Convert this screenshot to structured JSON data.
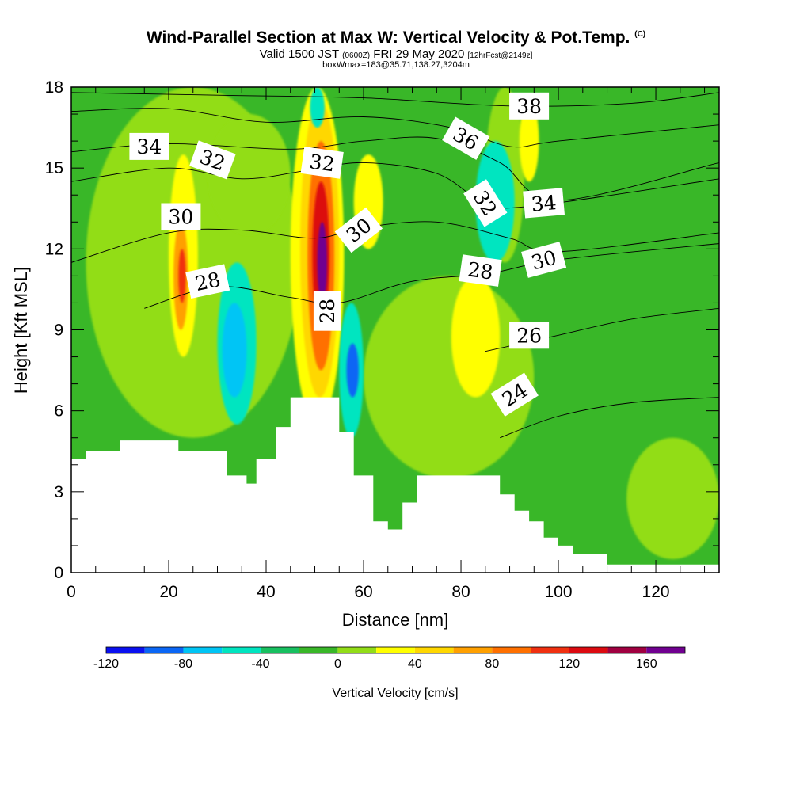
{
  "header": {
    "title": "Wind-Parallel Section at Max W: Vertical Velocity & Pot.Temp.",
    "copyright": "(C)",
    "valid_prefix": "Valid 1500 JST",
    "valid_utc": "(0600Z)",
    "valid_date": "FRI 29 May 2020",
    "forecast": "[12hrFcst@2149z]",
    "box_info": "boxWmax=183@35.71,138.27,3204m"
  },
  "chart_data": {
    "type": "heatmap",
    "xlabel": "Distance [nm]",
    "ylabel": "Height [Kft MSL]",
    "xlim": [
      0,
      133
    ],
    "ylim": [
      0,
      18
    ],
    "x_ticks": [
      0,
      20,
      40,
      60,
      80,
      100,
      120
    ],
    "y_ticks": [
      0,
      3,
      6,
      9,
      12,
      15,
      18
    ],
    "colorbar": {
      "title": "Vertical Velocity [cm/s]",
      "labels": [
        "-120",
        "-80",
        "-40",
        "0",
        "40",
        "80",
        "120",
        "160"
      ],
      "label_values": [
        -120,
        -80,
        -40,
        0,
        40,
        80,
        120,
        160
      ],
      "range": [
        -120,
        180
      ],
      "bins": [
        {
          "from": -120,
          "to": -100,
          "color": "#0a10f0"
        },
        {
          "from": -100,
          "to": -80,
          "color": "#0a66f5"
        },
        {
          "from": -80,
          "to": -60,
          "color": "#00c5f5"
        },
        {
          "from": -60,
          "to": -40,
          "color": "#00e5c0"
        },
        {
          "from": -40,
          "to": -20,
          "color": "#18c060"
        },
        {
          "from": -20,
          "to": 0,
          "color": "#39b728"
        },
        {
          "from": 0,
          "to": 20,
          "color": "#92dd18"
        },
        {
          "from": 20,
          "to": 40,
          "color": "#ffff00"
        },
        {
          "from": 40,
          "to": 60,
          "color": "#ffd700"
        },
        {
          "from": 60,
          "to": 80,
          "color": "#ffa000"
        },
        {
          "from": 80,
          "to": 100,
          "color": "#ff7000"
        },
        {
          "from": 100,
          "to": 120,
          "color": "#f03010"
        },
        {
          "from": 120,
          "to": 140,
          "color": "#dc0a10"
        },
        {
          "from": 140,
          "to": 160,
          "color": "#a00040"
        },
        {
          "from": 160,
          "to": 180,
          "color": "#700090"
        }
      ]
    },
    "background_velocity": -10,
    "velocity_features": [
      {
        "x": [
          3,
          47
        ],
        "y": [
          5,
          18
        ],
        "value": 5
      },
      {
        "x": [
          60,
          95
        ],
        "y": [
          3.5,
          11
        ],
        "value": 5
      },
      {
        "x": [
          114,
          133
        ],
        "y": [
          0.5,
          5
        ],
        "value": 5
      },
      {
        "x": [
          85,
          93
        ],
        "y": [
          11.5,
          18
        ],
        "value": 5
      },
      {
        "x": [
          28,
          45
        ],
        "y": [
          12.5,
          17
        ],
        "value": 5
      },
      {
        "x": [
          78,
          88
        ],
        "y": [
          6.5,
          11
        ],
        "value": 30
      },
      {
        "x": [
          92,
          96
        ],
        "y": [
          14.5,
          17.5
        ],
        "value": 30
      },
      {
        "x": [
          20,
          26
        ],
        "y": [
          8,
          15.5
        ],
        "value": 30
      },
      {
        "x": [
          21,
          24
        ],
        "y": [
          9,
          13
        ],
        "value": 70
      },
      {
        "x": [
          22,
          23.5
        ],
        "y": [
          10,
          12
        ],
        "value": 110
      },
      {
        "x": [
          45,
          56
        ],
        "y": [
          5.5,
          18
        ],
        "value": 30
      },
      {
        "x": [
          47,
          55
        ],
        "y": [
          6.5,
          17.5
        ],
        "value": 50
      },
      {
        "x": [
          48.5,
          54
        ],
        "y": [
          7.5,
          16
        ],
        "value": 90
      },
      {
        "x": [
          49.5,
          53
        ],
        "y": [
          9,
          14.5
        ],
        "value": 130
      },
      {
        "x": [
          50.5,
          52.5
        ],
        "y": [
          10,
          13
        ],
        "value": 170
      },
      {
        "x": [
          58,
          64
        ],
        "y": [
          12,
          15.5
        ],
        "value": 30
      },
      {
        "x": [
          30,
          38
        ],
        "y": [
          5.5,
          11.5
        ],
        "value": -50
      },
      {
        "x": [
          31,
          36
        ],
        "y": [
          6.5,
          10
        ],
        "value": -70
      },
      {
        "x": [
          55,
          60
        ],
        "y": [
          5,
          10
        ],
        "value": -50
      },
      {
        "x": [
          56.5,
          59
        ],
        "y": [
          6.5,
          8.5
        ],
        "value": -90
      },
      {
        "x": [
          83,
          91
        ],
        "y": [
          11.5,
          16
        ],
        "value": -50
      },
      {
        "x": [
          49,
          52
        ],
        "y": [
          16.5,
          18
        ],
        "value": -50
      }
    ],
    "terrain_kft": [
      [
        0,
        4.2
      ],
      [
        3,
        4.2
      ],
      [
        3,
        4.5
      ],
      [
        10,
        4.5
      ],
      [
        10,
        4.9
      ],
      [
        22,
        4.9
      ],
      [
        22,
        4.5
      ],
      [
        32,
        4.5
      ],
      [
        32,
        3.6
      ],
      [
        36,
        3.6
      ],
      [
        36,
        3.3
      ],
      [
        38,
        3.3
      ],
      [
        38,
        4.2
      ],
      [
        42,
        4.2
      ],
      [
        42,
        5.4
      ],
      [
        45,
        5.4
      ],
      [
        45,
        6.5
      ],
      [
        55,
        6.5
      ],
      [
        55,
        5.2
      ],
      [
        58,
        5.2
      ],
      [
        58,
        3.6
      ],
      [
        62,
        3.6
      ],
      [
        62,
        1.9
      ],
      [
        65,
        1.9
      ],
      [
        65,
        1.6
      ],
      [
        68,
        1.6
      ],
      [
        68,
        2.6
      ],
      [
        71,
        2.6
      ],
      [
        71,
        3.6
      ],
      [
        88,
        3.6
      ],
      [
        88,
        2.9
      ],
      [
        91,
        2.9
      ],
      [
        91,
        2.3
      ],
      [
        94,
        2.3
      ],
      [
        94,
        1.9
      ],
      [
        97,
        1.9
      ],
      [
        97,
        1.3
      ],
      [
        100,
        1.3
      ],
      [
        100,
        1.0
      ],
      [
        103,
        1.0
      ],
      [
        103,
        0.7
      ],
      [
        110,
        0.7
      ],
      [
        110,
        0.3
      ],
      [
        133,
        0.3
      ]
    ],
    "theta_contours": [
      {
        "value": 24,
        "points": [
          [
            88,
            5
          ],
          [
            100,
            5.8
          ],
          [
            115,
            6.3
          ],
          [
            133,
            6.5
          ]
        ]
      },
      {
        "value": 26,
        "points": [
          [
            85,
            8.2
          ],
          [
            100,
            8.8
          ],
          [
            115,
            9.4
          ],
          [
            133,
            9.8
          ]
        ]
      },
      {
        "value": 28,
        "points": [
          [
            15,
            9.8
          ],
          [
            30,
            10.6
          ],
          [
            45,
            10.2
          ],
          [
            55,
            10.0
          ],
          [
            70,
            10.8
          ],
          [
            86,
            11.1
          ],
          [
            100,
            11.6
          ],
          [
            133,
            12.2
          ]
        ]
      },
      {
        "value": 30,
        "points": [
          [
            0,
            11.5
          ],
          [
            20,
            12.6
          ],
          [
            35,
            12.7
          ],
          [
            50,
            12.4
          ],
          [
            60,
            12.8
          ],
          [
            75,
            13.0
          ],
          [
            90,
            12.4
          ],
          [
            100,
            11.9
          ],
          [
            133,
            12.6
          ]
        ]
      },
      {
        "value": 32,
        "points": [
          [
            0,
            14.5
          ],
          [
            20,
            15.0
          ],
          [
            35,
            14.6
          ],
          [
            48,
            14.9
          ],
          [
            60,
            15.2
          ],
          [
            75,
            14.8
          ],
          [
            85,
            13.7
          ],
          [
            95,
            13.6
          ],
          [
            133,
            14.6
          ]
        ]
      },
      {
        "value": 34,
        "points": [
          [
            0,
            15.6
          ],
          [
            20,
            15.9
          ],
          [
            45,
            15.7
          ],
          [
            60,
            16.0
          ],
          [
            75,
            16.1
          ],
          [
            88,
            15.2
          ],
          [
            100,
            13.8
          ],
          [
            133,
            15.2
          ]
        ]
      },
      {
        "value": 36,
        "points": [
          [
            0,
            17.1
          ],
          [
            20,
            17.2
          ],
          [
            40,
            16.7
          ],
          [
            60,
            16.9
          ],
          [
            78,
            16.5
          ],
          [
            90,
            15.8
          ],
          [
            100,
            16.0
          ],
          [
            133,
            16.6
          ]
        ]
      },
      {
        "value": 38,
        "points": [
          [
            0,
            17.8
          ],
          [
            30,
            17.7
          ],
          [
            60,
            17.6
          ],
          [
            90,
            17.3
          ],
          [
            115,
            17.4
          ],
          [
            133,
            17.8
          ]
        ]
      }
    ],
    "contour_labels": [
      {
        "text": "34",
        "x": 16,
        "y": 15.8,
        "rotate": 0
      },
      {
        "text": "32",
        "x": 29,
        "y": 15.3,
        "rotate": 20
      },
      {
        "text": "30",
        "x": 22.5,
        "y": 13.2,
        "rotate": 0
      },
      {
        "text": "28",
        "x": 28,
        "y": 10.8,
        "rotate": -12
      },
      {
        "text": "32",
        "x": 51.5,
        "y": 15.2,
        "rotate": 8
      },
      {
        "text": "30",
        "x": 59,
        "y": 12.7,
        "rotate": -38
      },
      {
        "text": "28",
        "x": 52.5,
        "y": 9.7,
        "rotate": -90
      },
      {
        "text": "36",
        "x": 81,
        "y": 16.1,
        "rotate": 30
      },
      {
        "text": "38",
        "x": 94,
        "y": 17.3,
        "rotate": 0
      },
      {
        "text": "32",
        "x": 85,
        "y": 13.7,
        "rotate": 58
      },
      {
        "text": "34",
        "x": 97,
        "y": 13.7,
        "rotate": -5
      },
      {
        "text": "28",
        "x": 84,
        "y": 11.2,
        "rotate": 8
      },
      {
        "text": "30",
        "x": 97,
        "y": 11.6,
        "rotate": -15
      },
      {
        "text": "26",
        "x": 94,
        "y": 8.8,
        "rotate": 0
      },
      {
        "text": "24",
        "x": 91,
        "y": 6.6,
        "rotate": -32
      }
    ]
  }
}
